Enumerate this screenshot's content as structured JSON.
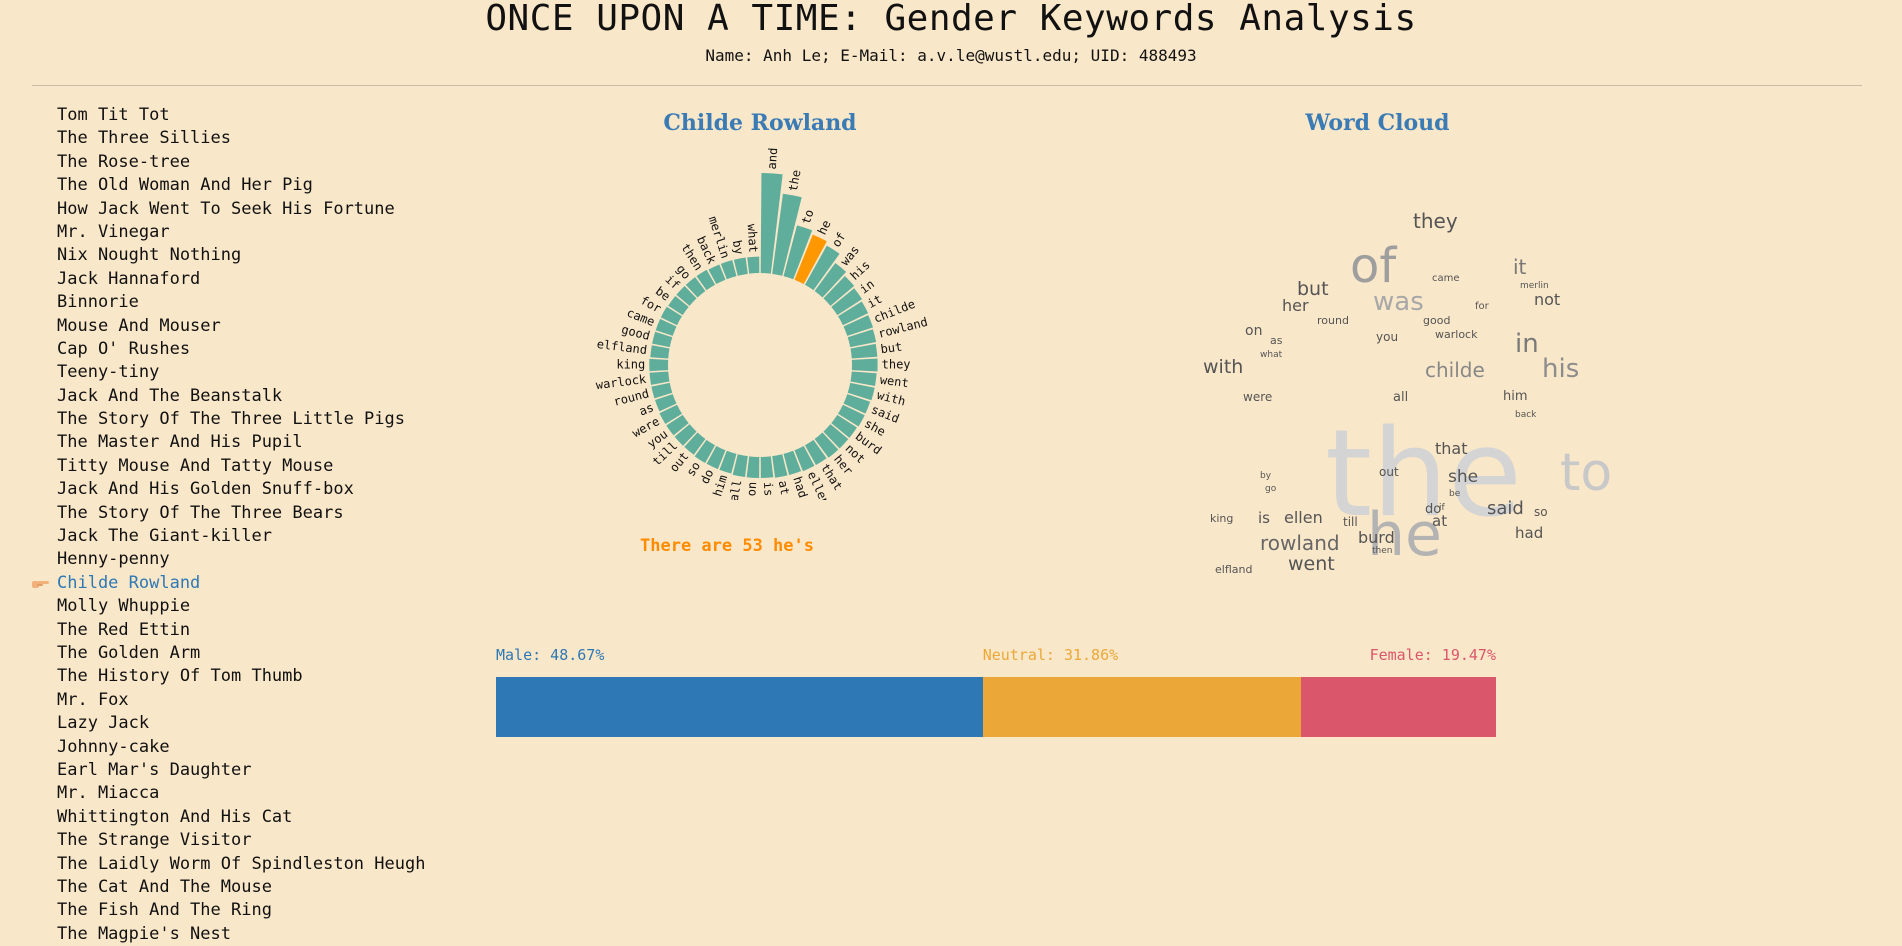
{
  "header": {
    "title": "ONCE UPON A TIME: Gender Keywords Analysis",
    "subtitle": "Name: Anh Le; E-Mail: a.v.le@wustl.edu; UID: 488493"
  },
  "stories": [
    "Tom Tit Tot",
    "The Three Sillies",
    "The Rose-tree",
    "The Old Woman And Her Pig",
    "How Jack Went To Seek His Fortune",
    "Mr. Vinegar",
    "Nix Nought Nothing",
    "Jack Hannaford",
    "Binnorie",
    "Mouse And Mouser",
    "Cap O' Rushes",
    "Teeny-tiny",
    "Jack And The Beanstalk",
    "The Story Of The Three Little Pigs",
    "The Master And His Pupil",
    "Titty Mouse And Tatty Mouse",
    "Jack And His Golden Snuff-box",
    "The Story Of The Three Bears",
    "Jack The Giant-killer",
    "Henny-penny",
    "Childe Rowland",
    "Molly Whuppie",
    "The Red Ettin",
    "The Golden Arm",
    "The History Of Tom Thumb",
    "Mr. Fox",
    "Lazy Jack",
    "Johnny-cake",
    "Earl Mar's Daughter",
    "Mr. Miacca",
    "Whittington And His Cat",
    "The Strange Visitor",
    "The Laidly Worm Of Spindleston Heugh",
    "The Cat And The Mouse",
    "The Fish And The Ring",
    "The Magpie's Nest"
  ],
  "selected_index": 20,
  "icons": {
    "pointer": "pointing-hand-icon"
  },
  "colors": {
    "bar": "#5fae9b",
    "highlight": "#ff9800",
    "male": "#2e78b5",
    "neutral": "#eba838",
    "female": "#da566b",
    "title": "#3a7bb5"
  },
  "radial_title": "Childe Rowland",
  "cloud_title": "Word Cloud",
  "count_note": "There are 53 he's",
  "chart_data": [
    {
      "type": "bar",
      "layout": "radial",
      "title": "Childe Rowland",
      "highlight": "he",
      "categories": [
        "and",
        "the",
        "to",
        "he",
        "of",
        "was",
        "his",
        "in",
        "it",
        "childe",
        "rowland",
        "but",
        "they",
        "went",
        "with",
        "said",
        "she",
        "burd",
        "not",
        "her",
        "that",
        "ellen",
        "had",
        "at",
        "is",
        "on",
        "all",
        "him",
        "do",
        "so",
        "out",
        "till",
        "you",
        "were",
        "as",
        "round",
        "warlock",
        "king",
        "elfland",
        "good",
        "came",
        "for",
        "be",
        "if",
        "go",
        "then",
        "back",
        "merlin",
        "by",
        "what"
      ],
      "values": [
        120,
        95,
        58,
        53,
        48,
        35,
        30,
        28,
        26,
        25,
        24,
        23,
        23,
        22,
        22,
        21,
        21,
        20,
        20,
        20,
        19,
        19,
        18,
        18,
        17,
        17,
        17,
        16,
        16,
        16,
        15,
        15,
        15,
        15,
        14,
        14,
        14,
        14,
        13,
        13,
        13,
        13,
        12,
        12,
        12,
        12,
        11,
        11,
        11,
        11
      ]
    },
    {
      "type": "word-cloud",
      "title": "Word Cloud",
      "words": [
        {
          "text": "the",
          "size": 120,
          "color": "#d4d4d4"
        },
        {
          "text": "he",
          "size": 60,
          "color": "#b3b3b3"
        },
        {
          "text": "of",
          "size": 48,
          "color": "#9e9e9e"
        },
        {
          "text": "to",
          "size": 52,
          "color": "#c8c8c8"
        },
        {
          "text": "was",
          "size": 26,
          "color": "#a8a8a8"
        },
        {
          "text": "his",
          "size": 26,
          "color": "#8c8c8c"
        },
        {
          "text": "in",
          "size": 26,
          "color": "#7a7a7a"
        },
        {
          "text": "they",
          "size": 20,
          "color": "#555555"
        },
        {
          "text": "it",
          "size": 20,
          "color": "#777777"
        },
        {
          "text": "childe",
          "size": 20,
          "color": "#888888"
        },
        {
          "text": "rowland",
          "size": 20,
          "color": "#666666"
        },
        {
          "text": "but",
          "size": 19,
          "color": "#555555"
        },
        {
          "text": "went",
          "size": 19,
          "color": "#555555"
        },
        {
          "text": "with",
          "size": 19,
          "color": "#555555"
        },
        {
          "text": "said",
          "size": 18,
          "color": "#555555"
        },
        {
          "text": "she",
          "size": 17,
          "color": "#555555"
        },
        {
          "text": "burd",
          "size": 16,
          "color": "#555555"
        },
        {
          "text": "not",
          "size": 16,
          "color": "#555555"
        },
        {
          "text": "her",
          "size": 16,
          "color": "#555555"
        },
        {
          "text": "that",
          "size": 16,
          "color": "#555555"
        },
        {
          "text": "ellen",
          "size": 16,
          "color": "#555555"
        },
        {
          "text": "had",
          "size": 15,
          "color": "#555555"
        },
        {
          "text": "at",
          "size": 15,
          "color": "#555555"
        },
        {
          "text": "is",
          "size": 15,
          "color": "#555555"
        },
        {
          "text": "on",
          "size": 14,
          "color": "#555555"
        },
        {
          "text": "all",
          "size": 13,
          "color": "#555555"
        },
        {
          "text": "him",
          "size": 13,
          "color": "#555555"
        },
        {
          "text": "do",
          "size": 13,
          "color": "#555555"
        },
        {
          "text": "so",
          "size": 12,
          "color": "#555555"
        },
        {
          "text": "out",
          "size": 12,
          "color": "#555555"
        },
        {
          "text": "till",
          "size": 12,
          "color": "#555555"
        },
        {
          "text": "you",
          "size": 12,
          "color": "#555555"
        },
        {
          "text": "were",
          "size": 12,
          "color": "#555555"
        },
        {
          "text": "as",
          "size": 11,
          "color": "#555555"
        },
        {
          "text": "round",
          "size": 11,
          "color": "#555555"
        },
        {
          "text": "warlock",
          "size": 11,
          "color": "#555555"
        },
        {
          "text": "king",
          "size": 11,
          "color": "#555555"
        },
        {
          "text": "elfland",
          "size": 11,
          "color": "#555555"
        },
        {
          "text": "good",
          "size": 11,
          "color": "#555555"
        },
        {
          "text": "came",
          "size": 10,
          "color": "#555555"
        },
        {
          "text": "for",
          "size": 10,
          "color": "#555555"
        },
        {
          "text": "be",
          "size": 9,
          "color": "#555555"
        },
        {
          "text": "if",
          "size": 9,
          "color": "#555555"
        },
        {
          "text": "go",
          "size": 9,
          "color": "#555555"
        },
        {
          "text": "then",
          "size": 9,
          "color": "#555555"
        },
        {
          "text": "back",
          "size": 9,
          "color": "#555555"
        },
        {
          "text": "merlin",
          "size": 9,
          "color": "#555555"
        },
        {
          "text": "by",
          "size": 9,
          "color": "#555555"
        },
        {
          "text": "what",
          "size": 9,
          "color": "#555555"
        }
      ]
    },
    {
      "type": "bar",
      "layout": "stacked-horizontal",
      "series": [
        {
          "name": "Male",
          "value": 48.67,
          "label": "Male: 48.67%"
        },
        {
          "name": "Neutral",
          "value": 31.86,
          "label": "Neutral: 31.86%"
        },
        {
          "name": "Female",
          "value": 19.47,
          "label": "Female: 19.47%"
        }
      ]
    }
  ]
}
